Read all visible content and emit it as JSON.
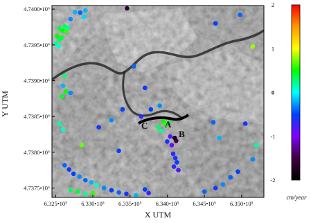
{
  "map": {
    "x_label": "X UTM",
    "y_label": "Y UTM",
    "x_ticks": [
      "6.325•10⁵",
      "6.330•10⁵",
      "6.335•10⁵",
      "6.340•10⁵",
      "6.345•10⁵",
      "6.350•10⁵"
    ],
    "y_ticks": [
      "4.7400•10⁶",
      "4.7395•10⁶",
      "4.7390•10⁶",
      "4.7385•10⁶",
      "4.7380•10⁶",
      "4.7375•10⁶"
    ],
    "markers": {
      "a": "A",
      "b": "B",
      "c": "C"
    },
    "basemap": "grayscale satellite image, mountainous terrain with a winding river"
  },
  "colorbar": {
    "unit": "cm/year",
    "ticks": [
      "2",
      "1",
      "0",
      "-1",
      "-2"
    ],
    "colors": [
      "#ff0000",
      "#ff9900",
      "#ffff00",
      "#00ff00",
      "#00ffff",
      "#0040ff",
      "#8000ff",
      "#400040",
      "#000000"
    ]
  },
  "chart_data": {
    "type": "scatter",
    "description": "Persistent scatterer velocity points over a grayscale image",
    "xlabel": "X UTM",
    "ylabel": "Y UTM",
    "xlim": [
      632450,
      635300
    ],
    "ylim": [
      4737370,
      4740050
    ],
    "color_scale": {
      "label": "cm/year",
      "range": [
        -2,
        2
      ]
    },
    "series": [
      {
        "points": [
          [
            632550,
            4739730,
            0.4
          ],
          [
            632590,
            4739700,
            0.5
          ],
          [
            632620,
            4739760,
            0.3
          ],
          [
            632640,
            4739690,
            0.6
          ],
          [
            632660,
            4739740,
            0.2
          ],
          [
            632520,
            4739620,
            0.5
          ],
          [
            632550,
            4739570,
            0.3
          ],
          [
            632580,
            4739600,
            0.4
          ],
          [
            632500,
            4739520,
            0.2
          ],
          [
            632540,
            4739480,
            0.1
          ],
          [
            632700,
            4739860,
            -0.3
          ],
          [
            632760,
            4739960,
            -0.2
          ],
          [
            632830,
            4739950,
            -0.4
          ],
          [
            632880,
            4739890,
            -0.1
          ],
          [
            632900,
            4739980,
            -0.2
          ],
          [
            633460,
            4740010,
            -1.6
          ],
          [
            634650,
            4739800,
            -0.5
          ],
          [
            635150,
            4739480,
            0.8
          ],
          [
            634980,
            4739920,
            -0.4
          ],
          [
            632620,
            4739070,
            0.3
          ],
          [
            632600,
            4738930,
            -0.2
          ],
          [
            632640,
            4738850,
            0.5
          ],
          [
            632580,
            4738780,
            0.4
          ],
          [
            632700,
            4738830,
            -0.3
          ],
          [
            632550,
            4738400,
            0.2
          ],
          [
            632600,
            4738320,
            0.1
          ],
          [
            633080,
            4738350,
            -0.6
          ],
          [
            633250,
            4738450,
            -0.3
          ],
          [
            633400,
            4738600,
            -0.5
          ],
          [
            633550,
            4739200,
            -0.4
          ],
          [
            633700,
            4738900,
            -0.6
          ],
          [
            633650,
            4738500,
            -0.7
          ],
          [
            633780,
            4738600,
            -0.5
          ],
          [
            633900,
            4738650,
            -0.3
          ],
          [
            633950,
            4738430,
            0.5
          ],
          [
            633980,
            4738390,
            0.6
          ],
          [
            634020,
            4738410,
            0.4
          ],
          [
            633880,
            4738350,
            0.3
          ],
          [
            633920,
            4738300,
            0.2
          ],
          [
            634040,
            4738220,
            -0.8
          ],
          [
            634000,
            4738150,
            -0.6
          ],
          [
            634060,
            4738100,
            -0.9
          ],
          [
            634100,
            4738200,
            -1.8
          ],
          [
            634120,
            4738160,
            -1.5
          ],
          [
            634080,
            4737980,
            -0.7
          ],
          [
            634110,
            4737920,
            -0.6
          ],
          [
            634130,
            4737860,
            -0.5
          ],
          [
            634090,
            4737800,
            -0.7
          ],
          [
            634150,
            4737750,
            -0.8
          ],
          [
            632620,
            4737820,
            -0.4
          ],
          [
            632680,
            4737760,
            -0.6
          ],
          [
            632740,
            4737700,
            -0.5
          ],
          [
            632820,
            4737660,
            -0.3
          ],
          [
            632900,
            4737610,
            -0.4
          ],
          [
            632980,
            4737580,
            -0.2
          ],
          [
            633050,
            4737540,
            0.1
          ],
          [
            633150,
            4737500,
            -0.3
          ],
          [
            633250,
            4737470,
            -0.5
          ],
          [
            633350,
            4737440,
            -0.4
          ],
          [
            633450,
            4737420,
            -0.6
          ],
          [
            633580,
            4737400,
            -0.2
          ],
          [
            633700,
            4737480,
            -0.5
          ],
          [
            633750,
            4737430,
            -0.7
          ],
          [
            632700,
            4737470,
            0.3
          ],
          [
            632800,
            4737450,
            0.4
          ],
          [
            632900,
            4737420,
            0.2
          ],
          [
            633000,
            4737430,
            0.6
          ],
          [
            634500,
            4737450,
            -0.4
          ],
          [
            634650,
            4737500,
            -0.6
          ],
          [
            634750,
            4737550,
            -0.3
          ],
          [
            634850,
            4737650,
            -0.4
          ],
          [
            634950,
            4737730,
            -0.5
          ],
          [
            635150,
            4737900,
            -0.3
          ],
          [
            635200,
            4738100,
            0.2
          ],
          [
            634620,
            4738420,
            -0.4
          ],
          [
            634700,
            4738200,
            -0.2
          ],
          [
            635050,
            4738400,
            -0.6
          ],
          [
            632850,
            4738100,
            0.7
          ],
          [
            633350,
            4738020,
            -0.5
          ]
        ]
      }
    ]
  }
}
